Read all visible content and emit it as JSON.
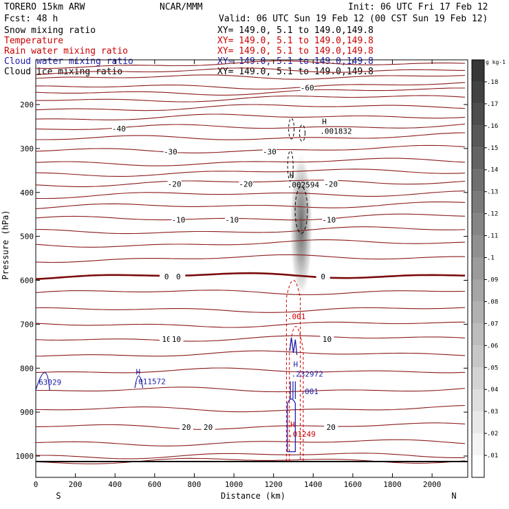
{
  "header": {
    "model": "TORERO  15km ARW",
    "center": "NCAR/MMM",
    "init": "Init: 06 UTC Fri 17 Feb 12",
    "fcst": "Fcst:   48 h",
    "valid": "Valid: 06 UTC Sun 19 Feb 12 (00 CST Sun 19 Feb 12)"
  },
  "legend": [
    {
      "label": "Snow mixing ratio",
      "xy": "XY= 149.0,  5.1 to 149.0,149.8",
      "color": "#000000"
    },
    {
      "label": "Temperature",
      "xy": "XY= 149.0,  5.1 to 149.0,149.8",
      "color": "#cc0000"
    },
    {
      "label": "Rain water mixing ratio",
      "xy": "XY= 149.0,  5.1 to 149.0,149.8",
      "color": "#cc0000"
    },
    {
      "label": "Cloud water mixing ratio",
      "xy": "XY= 149.0,  5.1 to 149.0,149.8",
      "color": "#1c1ca8"
    },
    {
      "label": "Cloud ice mixing ratio",
      "xy": "XY= 149.0,  5.1 to 149.0,149.8",
      "color": "#000000"
    }
  ],
  "chart_data": {
    "type": "cross-section contour",
    "xlabel": "Distance (km)",
    "ylabel": "Pressure (hPa)",
    "x_ticks": [
      0,
      200,
      400,
      600,
      800,
      1000,
      1200,
      1400,
      1600,
      1800,
      2000
    ],
    "y_ticks": [
      200,
      300,
      400,
      500,
      600,
      700,
      800,
      900,
      1000
    ],
    "xlim": [
      0,
      2180
    ],
    "ylim": [
      1050,
      100
    ],
    "x_left_label": "S",
    "x_right_label": "N",
    "temperature_contours": [
      {
        "value": -60,
        "label": "-60",
        "pressure": 162,
        "label_km": 1370,
        "color": "#7a0a0a"
      },
      {
        "value": -40,
        "label": "-40",
        "pressure": 255,
        "label_km": 420,
        "color": "#7a0a0a"
      },
      {
        "value": -30,
        "label": "-30",
        "pressure": 307,
        "label_km": 680,
        "color": "#7a0a0a"
      },
      {
        "value": -30,
        "label": "-30",
        "pressure": 307,
        "label_km": 1180,
        "color": "#7a0a0a"
      },
      {
        "value": -20,
        "label": "-20",
        "pressure": 381,
        "label_km": 700,
        "color": "#7a0a0a"
      },
      {
        "value": -20,
        "label": "-20",
        "pressure": 381,
        "label_km": 1060,
        "color": "#7a0a0a"
      },
      {
        "value": -20,
        "label": "-20",
        "pressure": 381,
        "label_km": 1490,
        "color": "#7a0a0a"
      },
      {
        "value": -10,
        "label": "-10",
        "pressure": 462,
        "label_km": 720,
        "color": "#7a0a0a"
      },
      {
        "value": -10,
        "label": "-10",
        "pressure": 462,
        "label_km": 990,
        "color": "#7a0a0a"
      },
      {
        "value": -10,
        "label": "-10",
        "pressure": 462,
        "label_km": 1480,
        "color": "#7a0a0a"
      },
      {
        "value": 0,
        "label": "0",
        "pressure": 591,
        "label_km": 660,
        "color": "#7a0a0a"
      },
      {
        "value": 0,
        "label": "0",
        "pressure": 591,
        "label_km": 720,
        "color": "#7a0a0a"
      },
      {
        "value": 0,
        "label": "0",
        "pressure": 591,
        "label_km": 1450,
        "color": "#7a0a0a"
      },
      {
        "value": 10,
        "label": "10",
        "pressure": 734,
        "label_km": 660,
        "color": "#7a0a0a"
      },
      {
        "value": 10,
        "label": "10",
        "pressure": 734,
        "label_km": 710,
        "color": "#7a0a0a"
      },
      {
        "value": 10,
        "label": "10",
        "pressure": 734,
        "label_km": 1470,
        "color": "#7a0a0a"
      },
      {
        "value": 20,
        "label": "20",
        "pressure": 934,
        "label_km": 760,
        "color": "#7a0a0a"
      },
      {
        "value": 20,
        "label": "20",
        "pressure": 934,
        "label_km": 870,
        "color": "#7a0a0a"
      },
      {
        "value": 20,
        "label": "20",
        "pressure": 934,
        "label_km": 1490,
        "color": "#7a0a0a"
      }
    ],
    "temperature_isotherm_pressures": [
      112,
      127,
      141,
      162,
      175,
      190,
      210,
      232,
      255,
      279,
      307,
      335,
      358,
      381,
      408,
      434,
      462,
      491,
      520,
      553,
      591,
      628,
      668,
      702,
      734,
      769,
      808,
      851,
      895,
      934,
      971,
      1000,
      1012
    ],
    "maxima": [
      {
        "field": "Cloud ice mixing ratio",
        "marker": "H",
        "value": ".001832",
        "km": 1445,
        "pressure": 260,
        "color": "#000000"
      },
      {
        "field": "Snow mixing ratio",
        "marker": "H",
        "value": ".002594",
        "km": 1280,
        "pressure": 382,
        "color": "#000000"
      },
      {
        "field": "Cloud water mixing ratio",
        "marker": "H",
        "value": ".232972",
        "km": 1300,
        "pressure": 813,
        "color": "#1c1ca8"
      },
      {
        "field": "Cloud water mixing ratio",
        "marker": "H",
        "value": ".011572",
        "km": 505,
        "pressure": 830,
        "color": "#1c1ca8"
      },
      {
        "field": "Cloud water mixing ratio",
        "marker": "",
        "value": "63029",
        "km": 25,
        "pressure": 832,
        "color": "#1c1ca8"
      },
      {
        "field": "Rain water mixing ratio",
        "marker": "H",
        "value": ".01249",
        "km": 1285,
        "pressure": 950,
        "color": "#cc0000"
      }
    ],
    "contour_labels": [
      {
        "field": "Rain water mixing ratio",
        "text": ".001",
        "km": 1270,
        "pressure": 682,
        "color": "#cc0000"
      },
      {
        "field": "Cloud water mixing ratio",
        "text": ".001",
        "km": 1335,
        "pressure": 853,
        "color": "#1c1ca8"
      }
    ],
    "shading": {
      "field": "Snow mixing ratio",
      "units": "g kg-1",
      "colorbar_ticks": [
        ".01",
        ".02",
        ".03",
        ".04",
        ".05",
        ".06",
        ".07",
        ".08",
        ".09",
        ".1",
        ".11",
        ".12",
        ".13",
        ".14",
        ".15",
        ".16",
        ".17",
        ".18"
      ],
      "max_km": 1340,
      "max_pressure": 475
    }
  }
}
